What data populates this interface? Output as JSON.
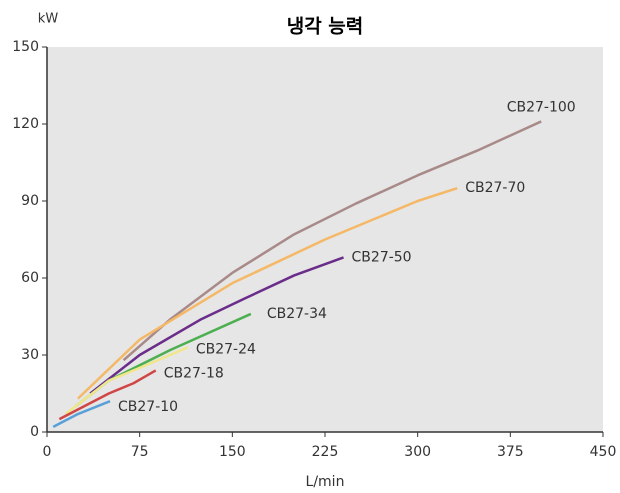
{
  "chart_data": {
    "type": "line",
    "title": "냉각 능력",
    "y_label": "kW",
    "x_label": "L/min",
    "xlim": [
      0,
      450
    ],
    "xticks": [
      0,
      75,
      150,
      225,
      300,
      375,
      450
    ],
    "ylim": [
      0,
      150
    ],
    "yticks": [
      0,
      30,
      60,
      90,
      120,
      150
    ],
    "series": [
      {
        "name": "CB27-100",
        "color": "#a88a88",
        "x": [
          62,
          100,
          150,
          200,
          250,
          300,
          350,
          400
        ],
        "values": [
          28,
          44,
          62,
          77,
          89,
          100,
          110,
          121
        ]
      },
      {
        "name": "CB27-70",
        "color": "#f5b866",
        "x": [
          25,
          75,
          150,
          225,
          300,
          332
        ],
        "values": [
          13,
          36,
          58,
          75,
          90,
          95
        ]
      },
      {
        "name": "CB27-50",
        "color": "#6a2d8a",
        "x": [
          35,
          75,
          125,
          160,
          200,
          240
        ],
        "values": [
          15,
          30,
          44,
          52,
          61,
          68
        ]
      },
      {
        "name": "CB27-34",
        "color": "#4caf50",
        "x": [
          23,
          50,
          100,
          165
        ],
        "values": [
          10,
          20,
          32,
          46
        ]
      },
      {
        "name": "CB27-24",
        "color": "#f0e68c",
        "x": [
          15,
          50,
          90,
          114
        ],
        "values": [
          7,
          20,
          28,
          33
        ]
      },
      {
        "name": "CB27-18",
        "color": "#d04545",
        "x": [
          10,
          50,
          70,
          88
        ],
        "values": [
          5,
          15,
          19,
          24
        ]
      },
      {
        "name": "CB27-10",
        "color": "#5aa0d8",
        "x": [
          5,
          25,
          51
        ],
        "values": [
          2,
          7,
          12
        ]
      }
    ]
  }
}
